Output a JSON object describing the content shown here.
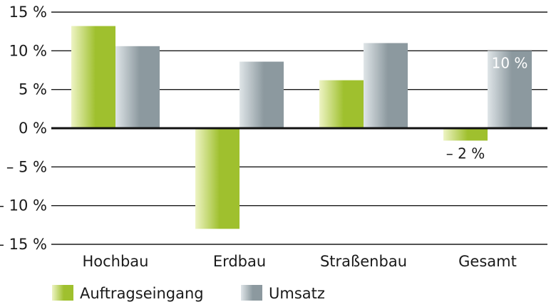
{
  "chart_data": {
    "type": "bar",
    "categories": [
      "Hochbau",
      "Erdbau",
      "Straßenbau",
      "Gesamt"
    ],
    "series": [
      {
        "name": "Auftragseingang",
        "values": [
          13.2,
          -13.0,
          6.2,
          -1.6
        ]
      },
      {
        "name": "Umsatz",
        "values": [
          10.6,
          8.6,
          11.0,
          10.0
        ]
      }
    ],
    "ylim": [
      -15,
      15
    ],
    "yticks": [
      15,
      10,
      5,
      0,
      -5,
      -10,
      -15
    ],
    "ytick_labels": [
      "15 %",
      "10 %",
      "5 %",
      "0 %",
      "– 5 %",
      "– 10 %",
      "– 15 %"
    ],
    "data_labels": [
      {
        "series": 1,
        "category": 3,
        "text": "10 %",
        "placement": "inside-top"
      },
      {
        "series": 0,
        "category": 3,
        "text": "– 2 %",
        "placement": "below"
      }
    ],
    "grid": true,
    "legend": {
      "position": "bottom-left"
    },
    "colors": {
      "Auftragseingang": {
        "light": "#eef4c4",
        "dark": "#9fc02e"
      },
      "Umsatz": {
        "light": "#dfe5e8",
        "dark": "#8c999f"
      },
      "grid": "#1a1a1a"
    }
  }
}
